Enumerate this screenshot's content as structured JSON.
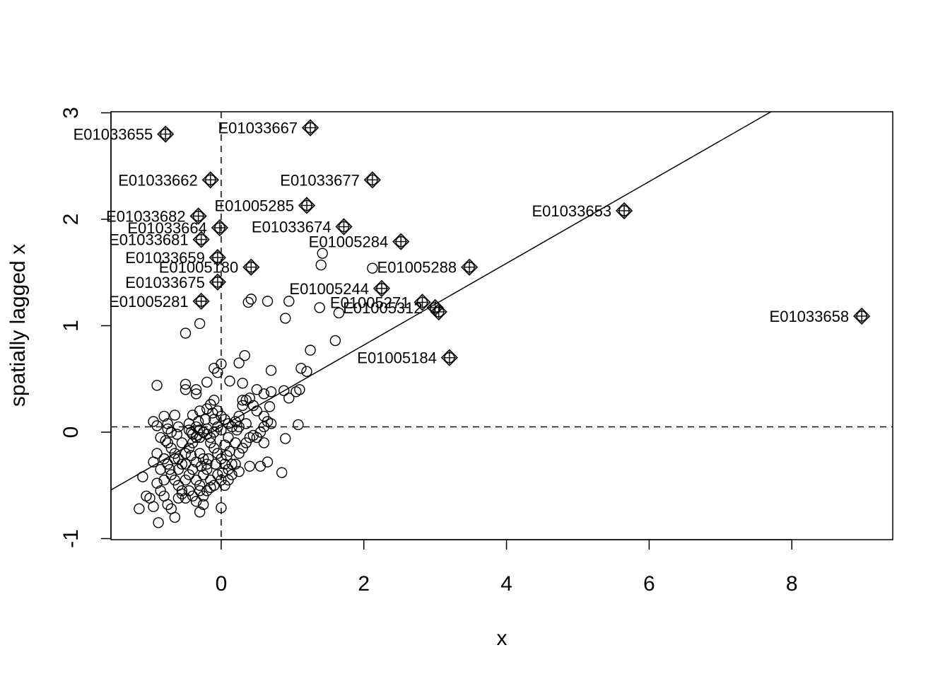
{
  "chart_data": {
    "type": "scatter",
    "title": "",
    "xlabel": "x",
    "ylabel": "spatially lagged x",
    "xlim": [
      -1.545,
      9.415
    ],
    "ylim": [
      -1.01,
      3.01
    ],
    "x_ticks": [
      0,
      2,
      4,
      6,
      8
    ],
    "y_ticks": [
      -1,
      0,
      1,
      2,
      3
    ],
    "x_tick_labels": [
      "0",
      "2",
      "4",
      "6",
      "8"
    ],
    "y_tick_labels": [
      "-1",
      "0",
      "1",
      "2",
      "3"
    ],
    "mean_x": 0.0,
    "mean_y": 0.05,
    "regression_line": {
      "intercept": 0.05,
      "slope": 0.384
    },
    "grid": false,
    "legend": "none",
    "points": [
      {
        "x": -0.9,
        "y": 0.44
      },
      {
        "x": -0.5,
        "y": 0.45
      },
      {
        "x": -0.5,
        "y": 0.4
      },
      {
        "x": -0.35,
        "y": 0.4
      },
      {
        "x": -0.35,
        "y": 0.36
      },
      {
        "x": -0.2,
        "y": 0.47
      },
      {
        "x": -0.1,
        "y": 0.6
      },
      {
        "x": -0.05,
        "y": 0.56
      },
      {
        "x": 0.0,
        "y": 0.64
      },
      {
        "x": 0.12,
        "y": 0.48
      },
      {
        "x": 0.25,
        "y": 0.65
      },
      {
        "x": 0.33,
        "y": 0.72
      },
      {
        "x": 0.3,
        "y": 0.46
      },
      {
        "x": 0.5,
        "y": 0.4
      },
      {
        "x": 0.7,
        "y": 0.58
      },
      {
        "x": 0.88,
        "y": 0.39
      },
      {
        "x": 0.95,
        "y": 0.32
      },
      {
        "x": 1.05,
        "y": 0.38
      },
      {
        "x": 1.1,
        "y": 0.4
      },
      {
        "x": 1.12,
        "y": 0.6
      },
      {
        "x": 1.2,
        "y": 0.57
      },
      {
        "x": 1.25,
        "y": 0.77
      },
      {
        "x": 1.6,
        "y": 0.86
      },
      {
        "x": 0.9,
        "y": 1.07
      },
      {
        "x": -0.5,
        "y": 0.93
      },
      {
        "x": -0.3,
        "y": 1.02
      },
      {
        "x": 0.38,
        "y": 1.22
      },
      {
        "x": 0.42,
        "y": 1.25
      },
      {
        "x": 0.65,
        "y": 1.23
      },
      {
        "x": 0.95,
        "y": 1.23
      },
      {
        "x": 1.38,
        "y": 1.17
      },
      {
        "x": 1.4,
        "y": 1.57
      },
      {
        "x": 1.42,
        "y": 1.68
      },
      {
        "x": 2.12,
        "y": 1.54
      },
      {
        "x": 1.65,
        "y": 1.12
      },
      {
        "x": -0.8,
        "y": 0.15
      },
      {
        "x": -0.75,
        "y": 0.08
      },
      {
        "x": -0.75,
        "y": 0.03
      },
      {
        "x": -0.95,
        "y": 0.1
      },
      {
        "x": -0.9,
        "y": 0.06
      },
      {
        "x": -0.6,
        "y": 0.05
      },
      {
        "x": -0.65,
        "y": 0.16
      },
      {
        "x": -0.4,
        "y": 0.16
      },
      {
        "x": -0.3,
        "y": 0.2
      },
      {
        "x": -0.2,
        "y": 0.22
      },
      {
        "x": -0.15,
        "y": 0.26
      },
      {
        "x": -0.1,
        "y": 0.3
      },
      {
        "x": -0.05,
        "y": 0.2
      },
      {
        "x": 0.0,
        "y": 0.15
      },
      {
        "x": 0.05,
        "y": 0.12
      },
      {
        "x": 0.1,
        "y": 0.08
      },
      {
        "x": 0.15,
        "y": 0.05
      },
      {
        "x": 0.2,
        "y": 0.1
      },
      {
        "x": 0.25,
        "y": 0.15
      },
      {
        "x": 0.3,
        "y": 0.25
      },
      {
        "x": 0.3,
        "y": 0.3
      },
      {
        "x": 0.35,
        "y": 0.3
      },
      {
        "x": 0.4,
        "y": 0.32
      },
      {
        "x": 0.45,
        "y": 0.25
      },
      {
        "x": 0.5,
        "y": 0.2
      },
      {
        "x": 0.6,
        "y": 0.15
      },
      {
        "x": 0.65,
        "y": 0.1
      },
      {
        "x": 0.7,
        "y": 0.08
      },
      {
        "x": 0.6,
        "y": 0.05
      },
      {
        "x": 0.55,
        "y": 0.0
      },
      {
        "x": 0.45,
        "y": -0.03
      },
      {
        "x": 0.35,
        "y": 0.08
      },
      {
        "x": 0.25,
        "y": 0.05
      },
      {
        "x": 0.68,
        "y": 0.24
      },
      {
        "x": 0.7,
        "y": 0.38
      },
      {
        "x": 0.6,
        "y": 0.36
      },
      {
        "x": 1.08,
        "y": 0.07
      },
      {
        "x": 0.9,
        "y": -0.06
      },
      {
        "x": -0.35,
        "y": 0.05
      },
      {
        "x": -0.3,
        "y": 0.02
      },
      {
        "x": -0.25,
        "y": 0.0
      },
      {
        "x": -0.2,
        "y": -0.02
      },
      {
        "x": -0.15,
        "y": -0.05
      },
      {
        "x": -0.1,
        "y": 0.0
      },
      {
        "x": -0.05,
        "y": 0.05
      },
      {
        "x": -0.45,
        "y": 0.08
      },
      {
        "x": -0.45,
        "y": 0.02
      },
      {
        "x": -0.4,
        "y": -0.02
      },
      {
        "x": -0.85,
        "y": -0.05
      },
      {
        "x": -0.75,
        "y": -0.1
      },
      {
        "x": -0.7,
        "y": -0.15
      },
      {
        "x": -0.65,
        "y": -0.2
      },
      {
        "x": -0.6,
        "y": -0.25
      },
      {
        "x": -0.55,
        "y": -0.3
      },
      {
        "x": -0.5,
        "y": -0.2
      },
      {
        "x": -0.45,
        "y": -0.15
      },
      {
        "x": -0.4,
        "y": -0.1
      },
      {
        "x": -0.35,
        "y": -0.05
      },
      {
        "x": -0.3,
        "y": -0.2
      },
      {
        "x": -0.25,
        "y": -0.25
      },
      {
        "x": -0.2,
        "y": -0.3
      },
      {
        "x": -0.15,
        "y": -0.1
      },
      {
        "x": -0.1,
        "y": -0.15
      },
      {
        "x": -0.05,
        "y": -0.2
      },
      {
        "x": 0.0,
        "y": -0.25
      },
      {
        "x": 0.05,
        "y": -0.3
      },
      {
        "x": 0.1,
        "y": -0.35
      },
      {
        "x": 0.15,
        "y": -0.4
      },
      {
        "x": 0.2,
        "y": -0.3
      },
      {
        "x": 0.25,
        "y": -0.2
      },
      {
        "x": 0.3,
        "y": -0.15
      },
      {
        "x": 0.35,
        "y": -0.1
      },
      {
        "x": 0.4,
        "y": -0.05
      },
      {
        "x": 0.5,
        "y": -0.05
      },
      {
        "x": 0.6,
        "y": -0.1
      },
      {
        "x": 0.55,
        "y": -0.32
      },
      {
        "x": 0.65,
        "y": -0.28
      },
      {
        "x": 0.4,
        "y": -0.32
      },
      {
        "x": 0.25,
        "y": -0.37
      },
      {
        "x": 0.85,
        "y": -0.38
      },
      {
        "x": -0.9,
        "y": -0.2
      },
      {
        "x": -0.95,
        "y": -0.28
      },
      {
        "x": -0.85,
        "y": -0.35
      },
      {
        "x": -0.8,
        "y": -0.45
      },
      {
        "x": -0.75,
        "y": -0.3
      },
      {
        "x": -0.7,
        "y": -0.4
      },
      {
        "x": -0.65,
        "y": -0.45
      },
      {
        "x": -0.6,
        "y": -0.5
      },
      {
        "x": -0.55,
        "y": -0.55
      },
      {
        "x": -0.5,
        "y": -0.45
      },
      {
        "x": -0.45,
        "y": -0.4
      },
      {
        "x": -0.4,
        "y": -0.35
      },
      {
        "x": -0.35,
        "y": -0.45
      },
      {
        "x": -0.3,
        "y": -0.5
      },
      {
        "x": -0.25,
        "y": -0.4
      },
      {
        "x": -0.2,
        "y": -0.35
      },
      {
        "x": -0.15,
        "y": -0.45
      },
      {
        "x": -0.1,
        "y": -0.5
      },
      {
        "x": -0.05,
        "y": -0.4
      },
      {
        "x": 0.0,
        "y": -0.45
      },
      {
        "x": 0.05,
        "y": -0.5
      },
      {
        "x": 0.1,
        "y": -0.45
      },
      {
        "x": 0.15,
        "y": -0.3
      },
      {
        "x": -1.1,
        "y": -0.42
      },
      {
        "x": -1.05,
        "y": -0.6
      },
      {
        "x": -1.0,
        "y": -0.62
      },
      {
        "x": -0.95,
        "y": -0.7
      },
      {
        "x": -0.9,
        "y": -0.48
      },
      {
        "x": -0.85,
        "y": -0.55
      },
      {
        "x": -0.8,
        "y": -0.6
      },
      {
        "x": -0.75,
        "y": -0.68
      },
      {
        "x": -0.7,
        "y": -0.72
      },
      {
        "x": -0.6,
        "y": -0.62
      },
      {
        "x": -0.55,
        "y": -0.58
      },
      {
        "x": -0.5,
        "y": -0.62
      },
      {
        "x": -0.45,
        "y": -0.55
      },
      {
        "x": -0.4,
        "y": -0.6
      },
      {
        "x": -0.35,
        "y": -0.65
      },
      {
        "x": -0.3,
        "y": -0.55
      },
      {
        "x": -0.25,
        "y": -0.6
      },
      {
        "x": -0.2,
        "y": -0.55
      },
      {
        "x": -0.15,
        "y": -0.52
      },
      {
        "x": -1.15,
        "y": -0.72
      },
      {
        "x": -0.88,
        "y": -0.85
      },
      {
        "x": -0.65,
        "y": -0.8
      },
      {
        "x": -0.3,
        "y": -0.75
      },
      {
        "x": 0.0,
        "y": -0.71
      },
      {
        "x": -0.25,
        "y": -0.68
      },
      {
        "x": -0.3,
        "y": -0.05
      },
      {
        "x": -0.2,
        "y": 0.03
      },
      {
        "x": -0.1,
        "y": 0.12
      },
      {
        "x": 0.0,
        "y": 0.02
      },
      {
        "x": 0.1,
        "y": -0.05
      },
      {
        "x": 0.05,
        "y": -0.12
      },
      {
        "x": 0.12,
        "y": -0.18
      },
      {
        "x": 0.2,
        "y": -0.1
      },
      {
        "x": 0.22,
        "y": 0.02
      },
      {
        "x": -0.55,
        "y": -0.1
      },
      {
        "x": -0.65,
        "y": -0.25
      },
      {
        "x": -0.72,
        "y": -0.35
      },
      {
        "x": -0.8,
        "y": -0.25
      },
      {
        "x": -0.6,
        "y": -0.35
      },
      {
        "x": -0.5,
        "y": -0.3
      },
      {
        "x": -0.42,
        "y": -0.22
      },
      {
        "x": -0.35,
        "y": -0.28
      },
      {
        "x": -0.28,
        "y": -0.32
      },
      {
        "x": -0.18,
        "y": -0.25
      },
      {
        "x": -0.08,
        "y": -0.3
      },
      {
        "x": 0.02,
        "y": -0.38
      },
      {
        "x": 0.08,
        "y": -0.22
      },
      {
        "x": -0.12,
        "y": 0.18
      },
      {
        "x": -0.22,
        "y": 0.12
      },
      {
        "x": -0.32,
        "y": 0.1
      },
      {
        "x": -0.42,
        "y": 0.0
      },
      {
        "x": -0.62,
        "y": -0.02
      },
      {
        "x": -0.7,
        "y": 0.0
      },
      {
        "x": -0.78,
        "y": -0.08
      }
    ],
    "influential_points": [
      {
        "label": "E01033655",
        "x": -0.78,
        "y": 2.8
      },
      {
        "label": "E01033667",
        "x": 1.25,
        "y": 2.86
      },
      {
        "label": "E01033662",
        "x": -0.15,
        "y": 2.37
      },
      {
        "label": "E01033677",
        "x": 2.12,
        "y": 2.37
      },
      {
        "label": "E01005285",
        "x": 1.2,
        "y": 2.13
      },
      {
        "label": "E01033682",
        "x": -0.32,
        "y": 2.03
      },
      {
        "label": "E01033664",
        "x": -0.02,
        "y": 1.92
      },
      {
        "label": "E01033674",
        "x": 1.72,
        "y": 1.93
      },
      {
        "label": "E01033653",
        "x": 5.65,
        "y": 2.08
      },
      {
        "label": "E01033681",
        "x": -0.28,
        "y": 1.81
      },
      {
        "label": "E01005284",
        "x": 2.52,
        "y": 1.79
      },
      {
        "label": "E01033659",
        "x": -0.05,
        "y": 1.64
      },
      {
        "label": "E01005180",
        "x": 0.42,
        "y": 1.55
      },
      {
        "label": "E01005288",
        "x": 3.48,
        "y": 1.55
      },
      {
        "label": "E01033675",
        "x": -0.05,
        "y": 1.41
      },
      {
        "label": "E01005244",
        "x": 2.25,
        "y": 1.35
      },
      {
        "label": "E01005281",
        "x": -0.28,
        "y": 1.23
      },
      {
        "label": "E01005271",
        "x": 2.82,
        "y": 1.22
      },
      {
        "label": "E01005312",
        "x": 3.0,
        "y": 1.17
      },
      {
        "label": "",
        "x": 3.05,
        "y": 1.13
      },
      {
        "label": "E01033658",
        "x": 8.98,
        "y": 1.09
      },
      {
        "label": "E01005184",
        "x": 3.2,
        "y": 0.7
      }
    ]
  }
}
